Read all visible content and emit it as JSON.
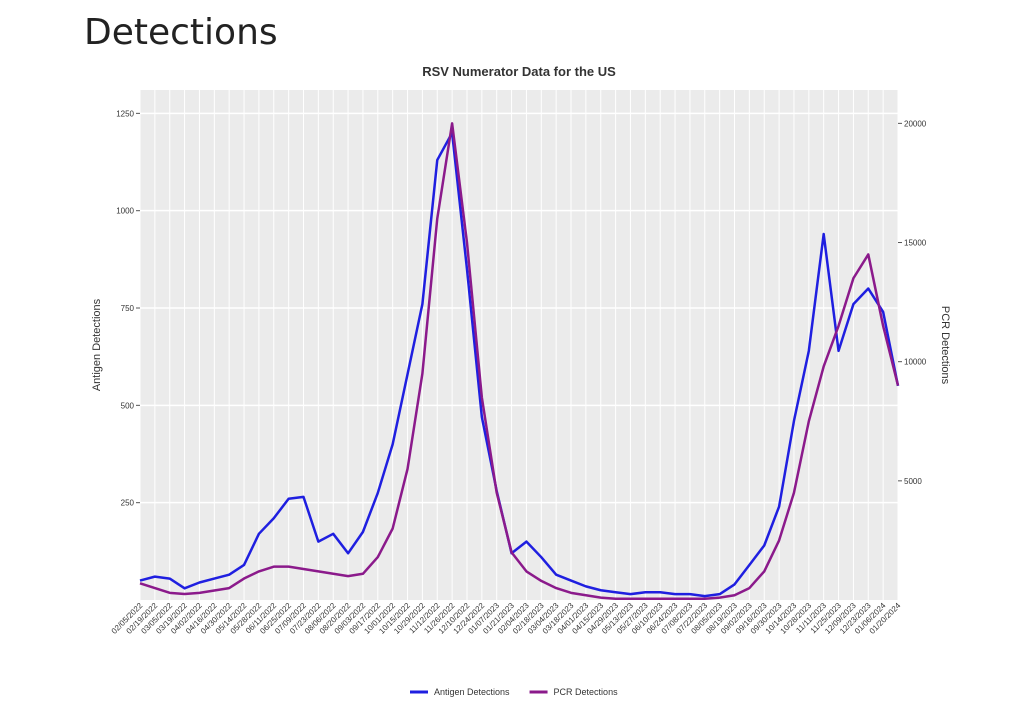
{
  "header": {
    "title": "Detections"
  },
  "chart_data": {
    "type": "line",
    "title": "RSV Numerator Data for the US",
    "y_label": "Antigen Detections",
    "y2_label": "PCR Detections",
    "categories": [
      "02/05/2022",
      "02/19/2022",
      "03/05/2022",
      "03/19/2022",
      "04/02/2022",
      "04/16/2022",
      "04/30/2022",
      "05/14/2022",
      "05/28/2022",
      "06/11/2022",
      "06/25/2022",
      "07/09/2022",
      "07/23/2022",
      "08/06/2022",
      "08/20/2022",
      "09/03/2022",
      "09/17/2022",
      "10/01/2022",
      "10/15/2022",
      "10/29/2022",
      "11/12/2022",
      "11/26/2022",
      "12/10/2022",
      "12/24/2022",
      "01/07/2023",
      "01/21/2023",
      "02/04/2023",
      "02/18/2023",
      "03/04/2023",
      "03/18/2023",
      "04/01/2023",
      "04/15/2023",
      "04/29/2023",
      "05/13/2023",
      "05/27/2023",
      "06/10/2023",
      "06/24/2023",
      "07/08/2023",
      "07/22/2023",
      "08/05/2023",
      "08/19/2023",
      "09/02/2023",
      "09/16/2023",
      "09/30/2023",
      "10/14/2023",
      "10/28/2023",
      "11/11/2023",
      "11/25/2023",
      "12/09/2023",
      "12/23/2023",
      "01/06/2024",
      "01/20/2024"
    ],
    "series": [
      {
        "name": "Antigen Detections",
        "color": "#1f1fe0",
        "axis": "y",
        "values": [
          50,
          60,
          55,
          30,
          45,
          55,
          65,
          90,
          170,
          210,
          260,
          265,
          150,
          170,
          120,
          175,
          275,
          400,
          580,
          760,
          1130,
          1200,
          850,
          470,
          280,
          120,
          150,
          110,
          65,
          50,
          35,
          25,
          20,
          15,
          20,
          20,
          15,
          15,
          10,
          15,
          40,
          90,
          140,
          240,
          460,
          640,
          940,
          640,
          760,
          800,
          740,
          550
        ]
      },
      {
        "name": "PCR Detections",
        "color": "#8b1a8b",
        "axis": "y2",
        "values": [
          700,
          500,
          300,
          250,
          300,
          400,
          500,
          900,
          1200,
          1400,
          1400,
          1300,
          1200,
          1100,
          1000,
          1100,
          1800,
          3000,
          5500,
          9500,
          16000,
          20000,
          15000,
          8500,
          4500,
          2000,
          1200,
          800,
          500,
          300,
          200,
          100,
          50,
          50,
          50,
          50,
          50,
          50,
          50,
          100,
          200,
          500,
          1200,
          2500,
          4500,
          7500,
          9800,
          11500,
          13500,
          14500,
          11500,
          9000
        ]
      }
    ],
    "ylim": [
      0,
      1310
    ],
    "yticks": [
      250,
      500,
      750,
      1000,
      1250
    ],
    "y2lim": [
      0,
      21400
    ],
    "y2ticks": [
      5000,
      10000,
      15000,
      20000
    ],
    "grid": true,
    "legend": "bottom"
  }
}
